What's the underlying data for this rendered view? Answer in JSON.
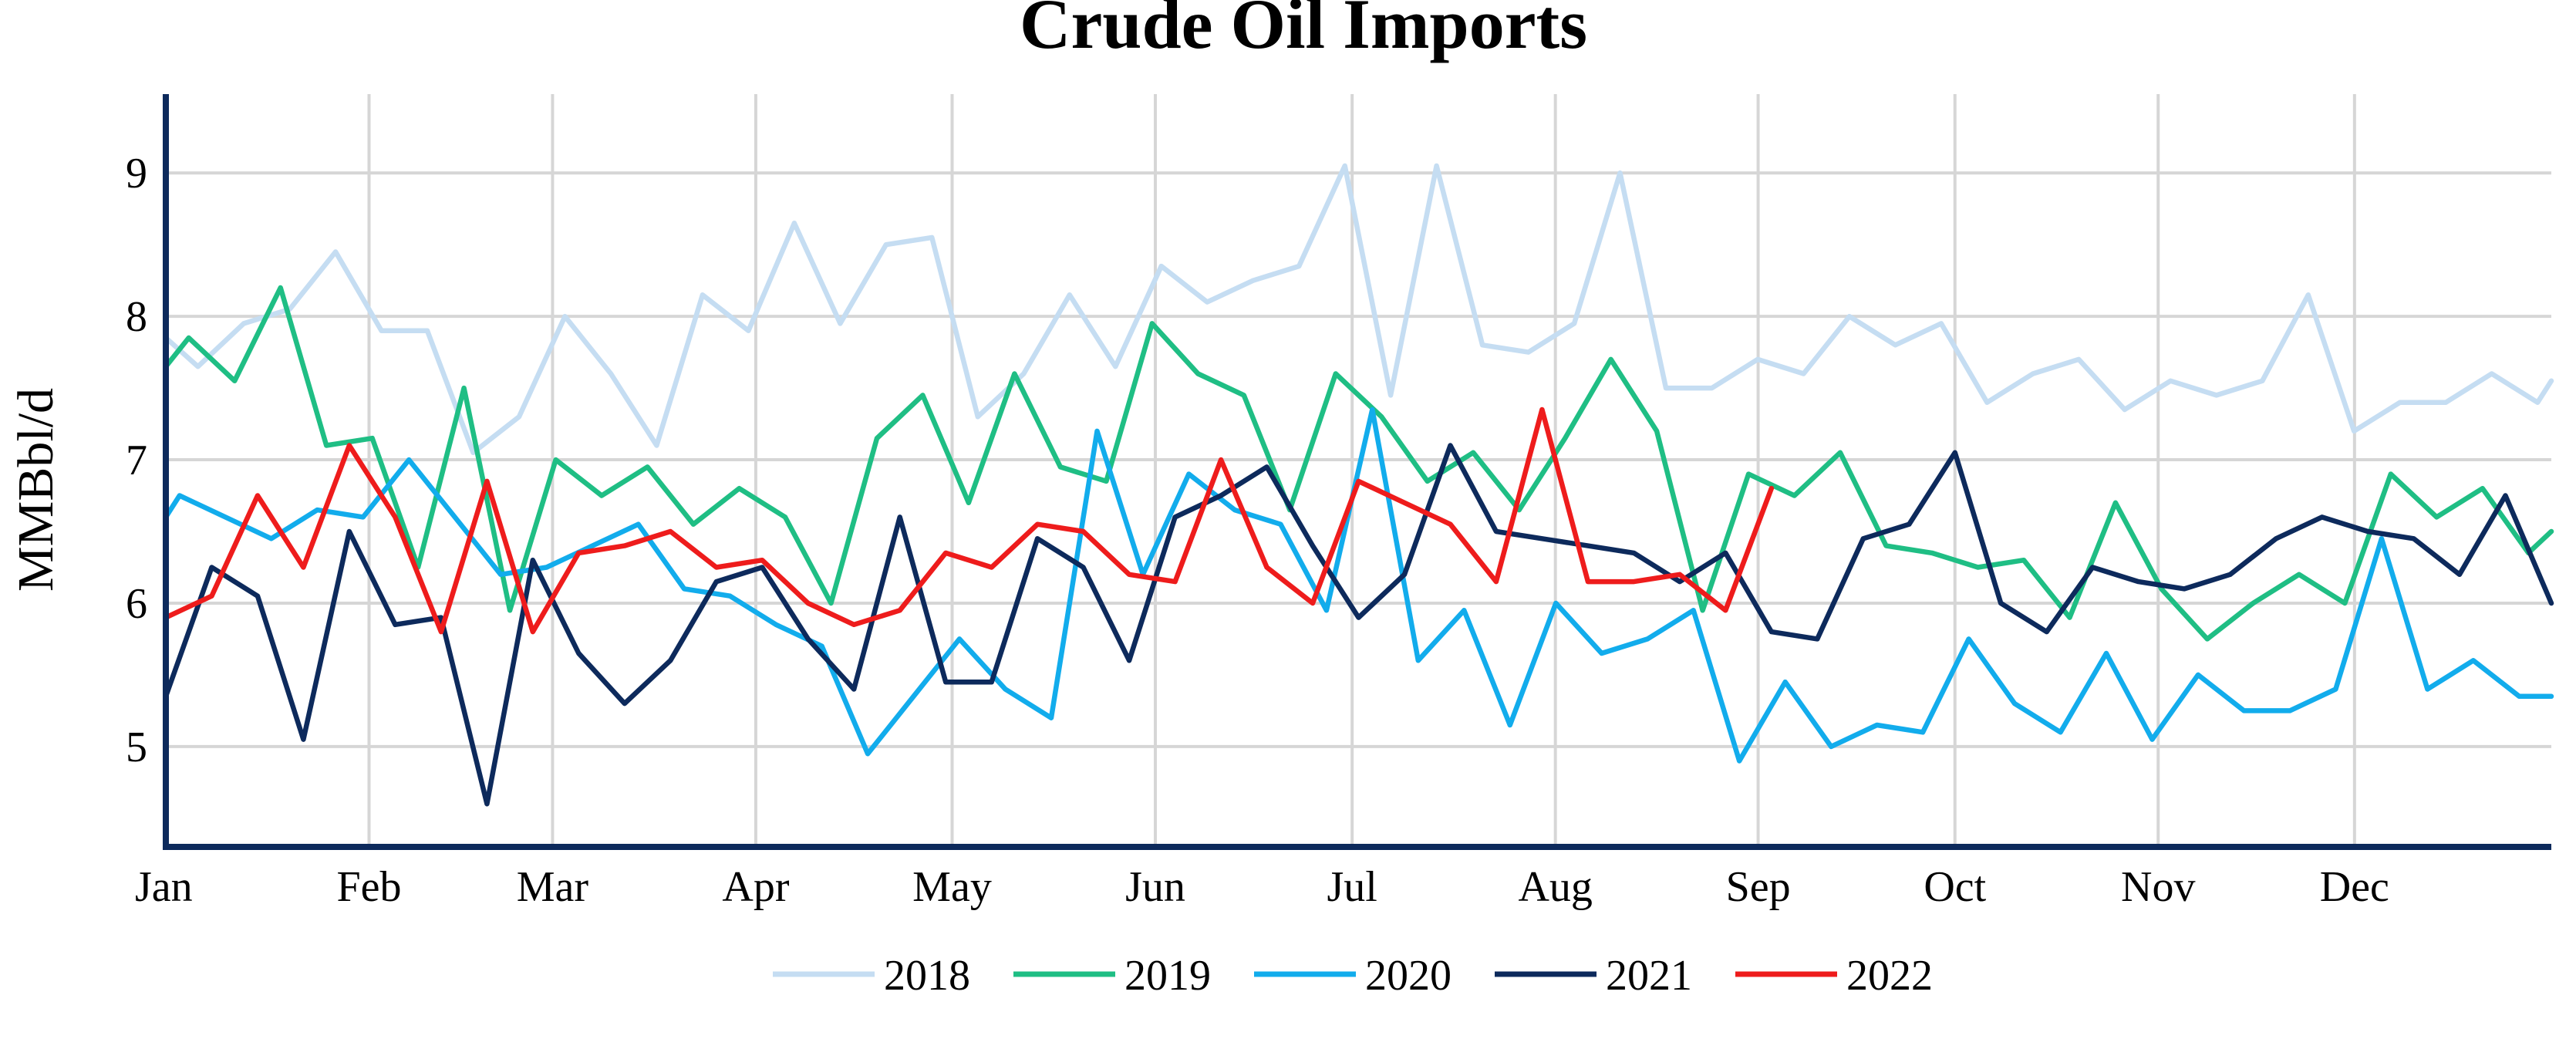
{
  "chart_data": {
    "type": "line",
    "title": "Crude Oil Imports",
    "ylabel": "MMBbl/d",
    "xlabel": "",
    "ylim": [
      4.3,
      9.55
    ],
    "xlim": [
      0,
      52
    ],
    "yticks": [
      5,
      6,
      7,
      8,
      9
    ],
    "ytick_labels": [
      "5",
      "6",
      "7",
      "8",
      "9"
    ],
    "xticks": [
      0,
      4.43,
      8.43,
      12.86,
      17.14,
      21.57,
      25.86,
      30.29,
      34.71,
      39,
      43.43,
      47.71
    ],
    "xtick_labels": [
      "Jan",
      "Feb",
      "Mar",
      "Apr",
      "May",
      "Jun",
      "Jul",
      "Aug",
      "Sep",
      "Oct",
      "Nov",
      "Dec"
    ],
    "grid": true,
    "legend_position": "bottom-center",
    "series": [
      {
        "name": "2018",
        "color": "#c5ddf2",
        "x": [
          0,
          0.7,
          1.7,
          2.7,
          3.7,
          4.7,
          5.7,
          6.7,
          7.7,
          8.7,
          9.7,
          10.7,
          11.7,
          12.7,
          13.7,
          14.7,
          15.7,
          16.7,
          17.7,
          18.7,
          19.7,
          20.7,
          21.7,
          22.7,
          23.7,
          24.7,
          25.7,
          26.7,
          27.7,
          28.7,
          29.7,
          30.7,
          31.7,
          32.7,
          33.7,
          34.7,
          35.7,
          36.7,
          37.7,
          38.7,
          39.7,
          40.7,
          41.7,
          42.7,
          43.7,
          44.7,
          45.7,
          46.7,
          47.7,
          48.7,
          49.7,
          50.7,
          51.7,
          52
        ],
        "y": [
          7.85,
          7.65,
          7.95,
          8.05,
          8.45,
          7.9,
          7.9,
          7.05,
          7.3,
          8.0,
          7.6,
          7.1,
          8.15,
          7.9,
          8.65,
          7.95,
          8.5,
          8.55,
          7.3,
          7.6,
          8.15,
          7.65,
          8.35,
          8.1,
          8.25,
          8.35,
          9.05,
          7.45,
          9.05,
          7.8,
          7.75,
          7.95,
          9.0,
          7.5,
          7.5,
          7.7,
          7.6,
          8.0,
          7.8,
          7.95,
          7.4,
          7.6,
          7.7,
          7.35,
          7.55,
          7.45,
          7.55,
          8.15,
          7.2,
          7.4,
          7.4,
          7.6,
          7.4,
          7.55
        ]
      },
      {
        "name": "2019",
        "color": "#1fbe84",
        "x": [
          0,
          0.5,
          1.5,
          2.5,
          3.5,
          4.5,
          5.5,
          6.5,
          7.5,
          8.5,
          9.5,
          10.5,
          11.5,
          12.5,
          13.5,
          14.5,
          15.5,
          16.5,
          17.5,
          18.5,
          19.5,
          20.5,
          21.5,
          22.5,
          23.5,
          24.5,
          25.5,
          26.5,
          27.5,
          28.5,
          29.5,
          30.5,
          31.5,
          32.5,
          33.5,
          34.5,
          35.5,
          36.5,
          37.5,
          38.5,
          39.5,
          40.5,
          41.5,
          42.5,
          43.5,
          44.5,
          45.5,
          46.5,
          47.5,
          48.5,
          49.5,
          50.5,
          51.5,
          52
        ],
        "y": [
          7.65,
          7.85,
          7.55,
          8.2,
          7.1,
          7.15,
          6.25,
          7.5,
          5.95,
          7.0,
          6.75,
          6.95,
          6.55,
          6.8,
          6.6,
          6.0,
          7.15,
          7.45,
          6.7,
          7.6,
          6.95,
          6.85,
          7.95,
          7.6,
          7.45,
          6.65,
          7.6,
          7.3,
          6.85,
          7.05,
          6.65,
          7.15,
          7.7,
          7.2,
          5.95,
          6.9,
          6.75,
          7.05,
          6.4,
          6.35,
          6.25,
          6.3,
          5.9,
          6.7,
          6.1,
          5.75,
          6.0,
          6.2,
          6.0,
          6.9,
          6.6,
          6.8,
          6.35,
          6.5
        ]
      },
      {
        "name": "2020",
        "color": "#12acec",
        "x": [
          0,
          0.3,
          1.3,
          2.3,
          3.3,
          4.3,
          5.3,
          6.3,
          7.3,
          8.3,
          9.3,
          10.3,
          11.3,
          12.3,
          13.3,
          14.3,
          15.3,
          16.3,
          17.3,
          18.3,
          19.3,
          20.3,
          21.3,
          22.3,
          23.3,
          24.3,
          25.3,
          26.3,
          27.3,
          28.3,
          29.3,
          30.3,
          31.3,
          32.3,
          33.3,
          34.3,
          35.3,
          36.3,
          37.3,
          38.3,
          39.3,
          40.3,
          41.3,
          42.3,
          43.3,
          44.3,
          45.3,
          46.3,
          47.3,
          48.3,
          49.3,
          50.3,
          51.3,
          52
        ],
        "y": [
          6.6,
          6.75,
          6.6,
          6.45,
          6.65,
          6.6,
          7.0,
          6.6,
          6.2,
          6.25,
          6.4,
          6.55,
          6.1,
          6.05,
          5.85,
          5.7,
          4.95,
          5.35,
          5.75,
          5.4,
          5.2,
          7.2,
          6.2,
          6.9,
          6.65,
          6.55,
          5.95,
          7.35,
          5.6,
          5.95,
          5.15,
          6.0,
          5.65,
          5.75,
          5.95,
          4.9,
          5.45,
          5.0,
          5.15,
          5.1,
          5.75,
          5.3,
          5.1,
          5.65,
          5.05,
          5.5,
          5.25,
          5.25,
          5.4,
          6.45,
          5.4,
          5.6,
          5.35,
          5.35
        ]
      },
      {
        "name": "2021",
        "color": "#0d2a5c",
        "x": [
          0,
          1,
          2,
          3,
          4,
          5,
          6,
          7,
          8,
          9,
          10,
          11,
          12,
          13,
          14,
          15,
          16,
          17,
          18,
          19,
          20,
          21,
          22,
          23,
          24,
          25,
          26,
          27,
          28,
          29,
          30,
          31,
          32,
          33,
          34,
          35,
          36,
          37,
          38,
          39,
          40,
          41,
          42,
          43,
          44,
          45,
          46,
          47,
          48,
          49,
          50,
          51,
          52
        ],
        "y": [
          5.35,
          6.25,
          6.05,
          5.05,
          6.5,
          5.85,
          5.9,
          4.6,
          6.3,
          5.65,
          5.3,
          5.6,
          6.15,
          6.25,
          5.75,
          5.4,
          6.6,
          5.45,
          5.45,
          6.45,
          6.25,
          5.6,
          6.6,
          6.75,
          6.95,
          6.4,
          5.9,
          6.2,
          7.1,
          6.5,
          6.45,
          6.4,
          6.35,
          6.15,
          6.35,
          5.8,
          5.75,
          6.45,
          6.55,
          7.05,
          6.0,
          5.8,
          6.25,
          6.15,
          6.1,
          6.2,
          6.45,
          6.6,
          6.5,
          6.45,
          6.2,
          6.75,
          6.0
        ]
      },
      {
        "name": "2022",
        "color": "#ee1c1c",
        "x": [
          0,
          1,
          2,
          3,
          4,
          5,
          6,
          7,
          8,
          9,
          10,
          11,
          12,
          13,
          14,
          15,
          16,
          17,
          18,
          19,
          20,
          21,
          22,
          23,
          24,
          25,
          26,
          27,
          28,
          29,
          30,
          31,
          32,
          33,
          34,
          35
        ],
        "y": [
          5.9,
          6.05,
          6.75,
          6.25,
          7.1,
          6.6,
          5.8,
          6.85,
          5.8,
          6.35,
          6.4,
          6.5,
          6.25,
          6.3,
          6.0,
          5.85,
          5.95,
          6.35,
          6.25,
          6.55,
          6.5,
          6.2,
          6.15,
          7.0,
          6.25,
          6.0,
          6.85,
          6.7,
          6.55,
          6.15,
          7.35,
          6.15,
          6.15,
          6.2,
          5.95,
          6.8
        ]
      }
    ]
  }
}
